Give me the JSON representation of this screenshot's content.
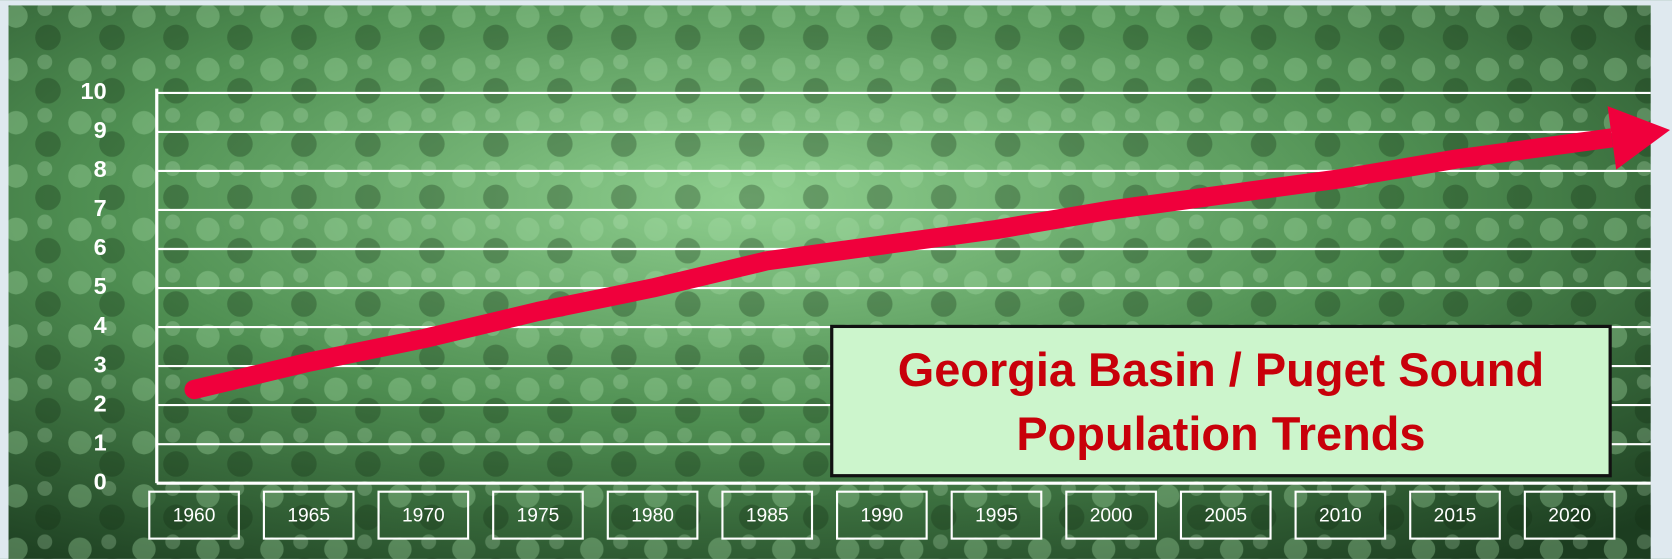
{
  "chart_data": {
    "type": "line",
    "title": [
      "Georgia Basin / Puget Sound",
      "Population Trends"
    ],
    "categories": [
      "1960",
      "1965",
      "1970",
      "1975",
      "1980",
      "1985",
      "1990",
      "1995",
      "2000",
      "2005",
      "2010",
      "2015",
      "2020"
    ],
    "series": [
      {
        "color": "#f0003c",
        "values": [
          2.4,
          3.1,
          3.7,
          4.4,
          5.0,
          5.7,
          6.1,
          6.5,
          7.0,
          7.4,
          7.8,
          8.3,
          8.7
        ]
      }
    ],
    "ylim": [
      0,
      10
    ],
    "yticks": [
      0,
      1,
      2,
      3,
      4,
      5,
      6,
      7,
      8,
      9,
      10
    ],
    "grid": true
  }
}
